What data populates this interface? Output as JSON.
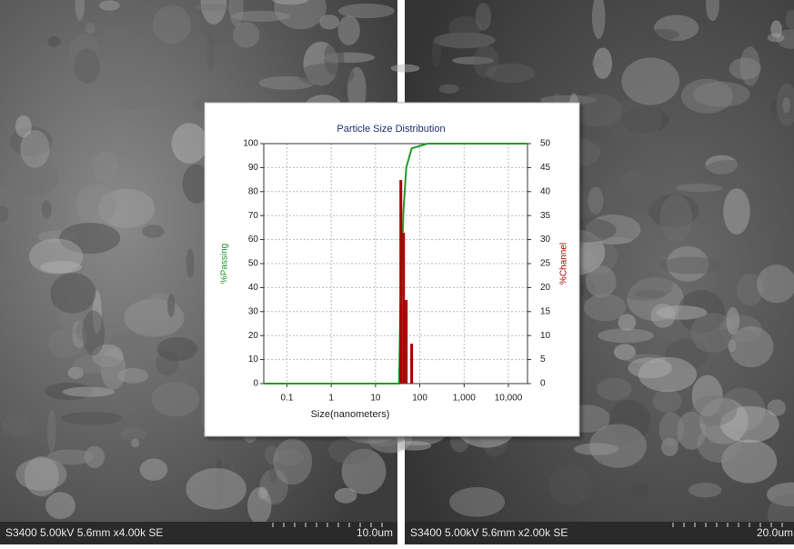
{
  "sem_images": [
    {
      "caption": "S3400 5.00kV 5.6mm x4.00k SE",
      "scale": "10.0um"
    },
    {
      "caption": "S3400 5.00kV 5.6mm x2.00k SE",
      "scale": "20.0um"
    }
  ],
  "chart_data": {
    "type": "line",
    "title": "Particle Size Distribution",
    "xlabel": "Size(nanometers)",
    "ylabel": "%Passing",
    "y2label": "%Channel",
    "log_x": true,
    "grid": true,
    "xlim": [
      0.03,
      27000
    ],
    "xticks": [
      0.1,
      1,
      10,
      100,
      {
        "value": 1000,
        "label": "1,000"
      },
      {
        "value": 10000,
        "label": "10,000"
      }
    ],
    "ylim": [
      0,
      100
    ],
    "yticks": [
      0,
      10,
      20,
      30,
      40,
      50,
      60,
      70,
      80,
      90,
      100
    ],
    "y2lim": [
      0,
      50
    ],
    "y2ticks": [
      0,
      5,
      10,
      15,
      20,
      25,
      30,
      35,
      40,
      45,
      50
    ],
    "series": [
      {
        "type": "line",
        "color": "#1f9a2a",
        "x": [
          0.03,
          34,
          37.3,
          43,
          49.4,
          65.5,
          150,
          27000
        ],
        "values": [
          0,
          0,
          42,
          73,
          90,
          98,
          100,
          100
        ]
      },
      {
        "type": "bar",
        "axis": "y2",
        "color": "#a80000",
        "x": [
          37.3,
          43,
          49.4,
          65.5
        ],
        "values": [
          42.4,
          31.4,
          17.4,
          8.3
        ]
      }
    ]
  }
}
